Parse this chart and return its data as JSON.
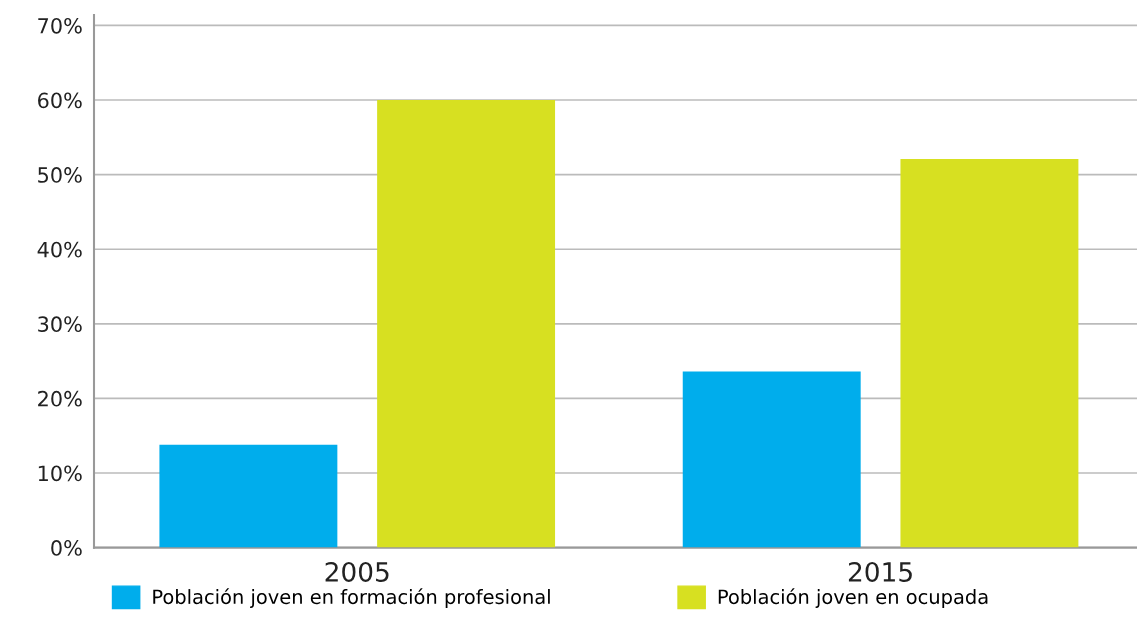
{
  "chart_data": {
    "type": "bar",
    "categories": [
      "2005",
      "2015"
    ],
    "series": [
      {
        "name": "Población joven en formación profesional",
        "color": "#00adec",
        "values": [
          13.8,
          23.6
        ]
      },
      {
        "name": "Población joven en ocupada",
        "color": "#d7e021",
        "values": [
          60,
          52.1
        ]
      }
    ],
    "ylim": [
      0,
      71.4
    ],
    "yticks": [
      {
        "value": 0,
        "label": "0%"
      },
      {
        "value": 10,
        "label": "10%"
      },
      {
        "value": 20,
        "label": "20%"
      },
      {
        "value": 30,
        "label": "30%"
      },
      {
        "value": 40,
        "label": "40%"
      },
      {
        "value": 50,
        "label": "50%"
      },
      {
        "value": 60,
        "label": "60%"
      },
      {
        "value": 70,
        "label": "70%"
      }
    ],
    "grid": "y",
    "legend": "bottom"
  }
}
